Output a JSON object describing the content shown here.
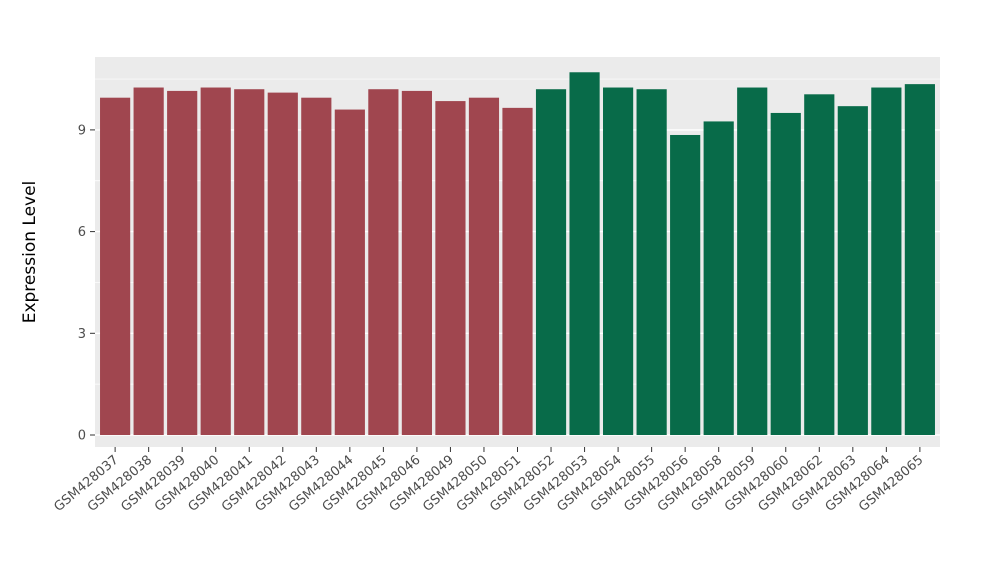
{
  "chart_data": {
    "type": "bar",
    "title": "",
    "xlabel": "",
    "ylabel": "Expression Level",
    "ylim": [
      0,
      11.15
    ],
    "yticks": [
      0,
      3,
      6,
      9
    ],
    "minor_ticks": [
      1.5,
      4.5,
      7.5,
      10.5
    ],
    "grid": true,
    "legend": "none",
    "categories": [
      "GSM428037",
      "GSM428038",
      "GSM428039",
      "GSM428040",
      "GSM428041",
      "GSM428042",
      "GSM428043",
      "GSM428044",
      "GSM428045",
      "GSM428046",
      "GSM428049",
      "GSM428050",
      "GSM428051",
      "GSM428052",
      "GSM428053",
      "GSM428054",
      "GSM428055",
      "GSM428056",
      "GSM428058",
      "GSM428059",
      "GSM428060",
      "GSM428062",
      "GSM428063",
      "GSM428064",
      "GSM428065"
    ],
    "values": [
      9.95,
      10.25,
      10.15,
      10.25,
      10.2,
      10.1,
      9.95,
      9.6,
      10.2,
      10.15,
      9.85,
      9.95,
      9.65,
      10.2,
      10.7,
      10.25,
      10.2,
      8.85,
      9.25,
      10.25,
      9.5,
      10.05,
      9.7,
      10.25,
      10.35
    ],
    "groups": [
      "group1",
      "group1",
      "group1",
      "group1",
      "group1",
      "group1",
      "group1",
      "group1",
      "group1",
      "group1",
      "group1",
      "group1",
      "group1",
      "group2",
      "group2",
      "group2",
      "group2",
      "group2",
      "group2",
      "group2",
      "group2",
      "group2",
      "group2",
      "group2",
      "group2"
    ],
    "group_colors": {
      "group1": "#A0464F",
      "group2": "#086B49"
    },
    "panel_background": "#EBEBEB",
    "grid_color": "#FFFFFF",
    "axis_text_color": "#4D4D4D",
    "axis_tick_color": "#333333",
    "axis_title_color": "#000000"
  }
}
